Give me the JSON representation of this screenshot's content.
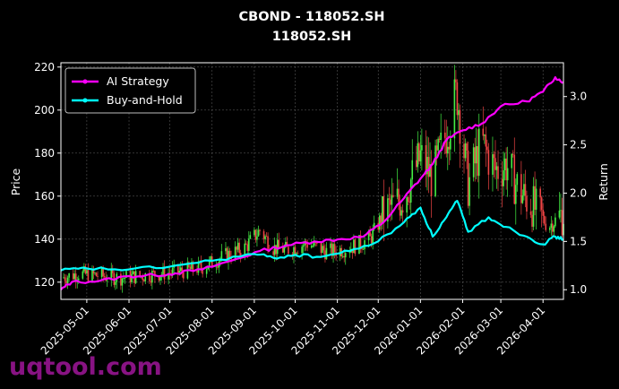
{
  "chart_data": {
    "type": "line",
    "title": "CBOND - 118052.SH",
    "subtitle": "118052.SH",
    "ylabel": "Price",
    "y2label": "Return",
    "ylim": [
      112,
      222
    ],
    "y2lim": [
      0.9,
      3.35
    ],
    "xlim": [
      "2025-04-12",
      "2026-04-16"
    ],
    "x_ticks": [
      "2025-05-01",
      "2025-06-01",
      "2025-07-01",
      "2025-08-01",
      "2025-09-01",
      "2025-10-01",
      "2025-11-01",
      "2025-12-01",
      "2026-01-01",
      "2026-02-01",
      "2026-03-01",
      "2026-04-01"
    ],
    "y_ticks": [
      120,
      140,
      160,
      180,
      200,
      220
    ],
    "y2_ticks": [
      "1.0",
      "1.5",
      "2.0",
      "2.5",
      "3.0"
    ],
    "grid": true,
    "legend_position": "top-left",
    "colors": {
      "up": "#44ee44",
      "down": "#ee4444",
      "ai": "#ff00ff",
      "bh": "#00ffff"
    },
    "price_path": [
      [
        "2025-04-12",
        122
      ],
      [
        "2025-04-25",
        124
      ],
      [
        "2025-05-10",
        123
      ],
      [
        "2025-05-25",
        122
      ],
      [
        "2025-06-10",
        123
      ],
      [
        "2025-06-25",
        124
      ],
      [
        "2025-07-10",
        125
      ],
      [
        "2025-07-25",
        127
      ],
      [
        "2025-08-10",
        132
      ],
      [
        "2025-08-25",
        136
      ],
      [
        "2025-09-05",
        144
      ],
      [
        "2025-09-15",
        136
      ],
      [
        "2025-09-25",
        135
      ],
      [
        "2025-10-10",
        138
      ],
      [
        "2025-10-25",
        134
      ],
      [
        "2025-11-10",
        136
      ],
      [
        "2025-11-25",
        140
      ],
      [
        "2025-12-05",
        152
      ],
      [
        "2025-12-20",
        160
      ],
      [
        "2026-01-01",
        178
      ],
      [
        "2026-01-10",
        168
      ],
      [
        "2026-01-20",
        190
      ],
      [
        "2026-01-28",
        208
      ],
      [
        "2026-02-05",
        165
      ],
      [
        "2026-02-15",
        185
      ],
      [
        "2026-02-25",
        172
      ],
      [
        "2026-03-05",
        175
      ],
      [
        "2026-03-15",
        162
      ],
      [
        "2026-03-25",
        155
      ],
      [
        "2026-04-05",
        146
      ],
      [
        "2026-04-16",
        152
      ]
    ],
    "series": [
      {
        "name": "AI Strategy",
        "values": [
          [
            "2025-04-12",
            1.0
          ],
          [
            "2025-04-20",
            1.08
          ],
          [
            "2025-05-10",
            1.09
          ],
          [
            "2025-06-01",
            1.14
          ],
          [
            "2025-06-20",
            1.15
          ],
          [
            "2025-07-05",
            1.17
          ],
          [
            "2025-07-25",
            1.21
          ],
          [
            "2025-08-15",
            1.3
          ],
          [
            "2025-09-05",
            1.4
          ],
          [
            "2025-09-25",
            1.46
          ],
          [
            "2025-10-15",
            1.5
          ],
          [
            "2025-11-01",
            1.52
          ],
          [
            "2025-11-20",
            1.55
          ],
          [
            "2025-12-05",
            1.7
          ],
          [
            "2025-12-20",
            1.95
          ],
          [
            "2026-01-01",
            2.15
          ],
          [
            "2026-01-10",
            2.3
          ],
          [
            "2026-01-20",
            2.55
          ],
          [
            "2026-02-01",
            2.65
          ],
          [
            "2026-02-15",
            2.72
          ],
          [
            "2026-03-01",
            2.9
          ],
          [
            "2026-03-20",
            2.95
          ],
          [
            "2026-04-01",
            3.05
          ],
          [
            "2026-04-10",
            3.2
          ],
          [
            "2026-04-16",
            3.15
          ]
        ]
      },
      {
        "name": "Buy-and-Hold",
        "values": [
          [
            "2025-04-12",
            1.2
          ],
          [
            "2025-05-01",
            1.22
          ],
          [
            "2025-06-01",
            1.21
          ],
          [
            "2025-07-01",
            1.24
          ],
          [
            "2025-08-01",
            1.3
          ],
          [
            "2025-09-01",
            1.37
          ],
          [
            "2025-09-15",
            1.33
          ],
          [
            "2025-10-01",
            1.36
          ],
          [
            "2025-10-20",
            1.34
          ],
          [
            "2025-11-10",
            1.4
          ],
          [
            "2025-12-01",
            1.5
          ],
          [
            "2025-12-20",
            1.7
          ],
          [
            "2026-01-01",
            1.85
          ],
          [
            "2026-01-10",
            1.55
          ],
          [
            "2026-01-20",
            1.75
          ],
          [
            "2026-01-28",
            1.92
          ],
          [
            "2026-02-05",
            1.6
          ],
          [
            "2026-02-20",
            1.75
          ],
          [
            "2026-03-05",
            1.65
          ],
          [
            "2026-03-20",
            1.55
          ],
          [
            "2026-04-01",
            1.47
          ],
          [
            "2026-04-10",
            1.55
          ],
          [
            "2026-04-16",
            1.52
          ]
        ]
      }
    ]
  },
  "watermark": "uqtool.com"
}
